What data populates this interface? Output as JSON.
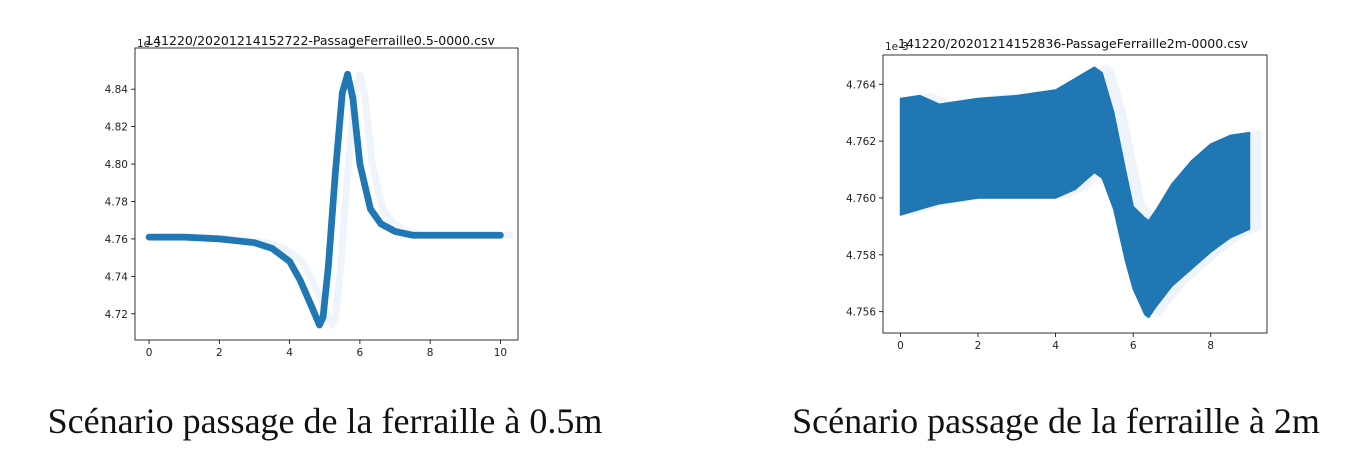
{
  "charts": [
    {
      "title": "141220/20201214152722-PassageFerraille0.5-0000.csv",
      "offset_label": "1e-3",
      "caption": "Scénario passage de la ferraille à 0.5m",
      "color": "#1f77b4"
    },
    {
      "title": "141220/20201214152836-PassageFerraille2m-0000.csv",
      "offset_label": "1e-3",
      "caption": "Scénario passage de la ferraille à 2m",
      "color": "#1f77b4"
    }
  ],
  "chart_data": [
    {
      "type": "line",
      "title": "141220/20201214152722-PassageFerraille0.5-0000.csv",
      "xlim": [
        -0.4,
        10.5
      ],
      "ylim": [
        4.706,
        4.862
      ],
      "y_scale_label": "1e-3",
      "xticks": [
        0,
        2,
        4,
        6,
        8,
        10
      ],
      "yticks": [
        4.72,
        4.74,
        4.76,
        4.78,
        4.8,
        4.82,
        4.84
      ],
      "ytick_labels": [
        "4.72",
        "4.74",
        "4.76",
        "4.78",
        "4.80",
        "4.82",
        "4.84"
      ],
      "series": [
        {
          "x": [
            0,
            1,
            2,
            3,
            3.5,
            4,
            4.3,
            4.6,
            4.85,
            4.95,
            5.1,
            5.3,
            5.5,
            5.65,
            5.8,
            6.0,
            6.3,
            6.6,
            7,
            7.5,
            8,
            9,
            10
          ],
          "y": [
            4.761,
            4.761,
            4.76,
            4.758,
            4.755,
            4.748,
            4.738,
            4.725,
            4.714,
            4.718,
            4.745,
            4.795,
            4.838,
            4.848,
            4.835,
            4.8,
            4.776,
            4.768,
            4.764,
            4.762,
            4.762,
            4.762,
            4.762
          ],
          "band": 0.0018
        }
      ]
    },
    {
      "type": "line",
      "title": "141220/20201214152836-PassageFerraille2m-0000.csv",
      "xlim": [
        -0.45,
        9.45
      ],
      "ylim": [
        4.75525,
        4.76503
      ],
      "y_scale_label": "1e-3",
      "xticks": [
        0,
        2,
        4,
        6,
        8
      ],
      "yticks": [
        4.756,
        4.758,
        4.76,
        4.762,
        4.764
      ],
      "ytick_labels": [
        "4.756",
        "4.758",
        "4.760",
        "4.762",
        "4.764"
      ],
      "series": [
        {
          "x": [
            0,
            0.5,
            1,
            2,
            3,
            4,
            4.5,
            5,
            5.2,
            5.5,
            5.8,
            6.0,
            6.3,
            6.4,
            6.6,
            7,
            7.5,
            8,
            8.5,
            9
          ],
          "upper": [
            4.7635,
            4.7636,
            4.7633,
            4.7635,
            4.7636,
            4.7638,
            4.7642,
            4.7646,
            4.7644,
            4.763,
            4.761,
            4.7597,
            4.7593,
            4.7592,
            4.7596,
            4.7605,
            4.7613,
            4.7619,
            4.7622,
            4.7623
          ],
          "lower": [
            4.7594,
            4.7596,
            4.7598,
            4.76,
            4.76,
            4.76,
            4.7603,
            4.7609,
            4.7607,
            4.7596,
            4.7578,
            4.7568,
            4.7559,
            4.7558,
            4.7562,
            4.7569,
            4.7575,
            4.7581,
            4.7586,
            4.7589
          ]
        }
      ]
    }
  ]
}
